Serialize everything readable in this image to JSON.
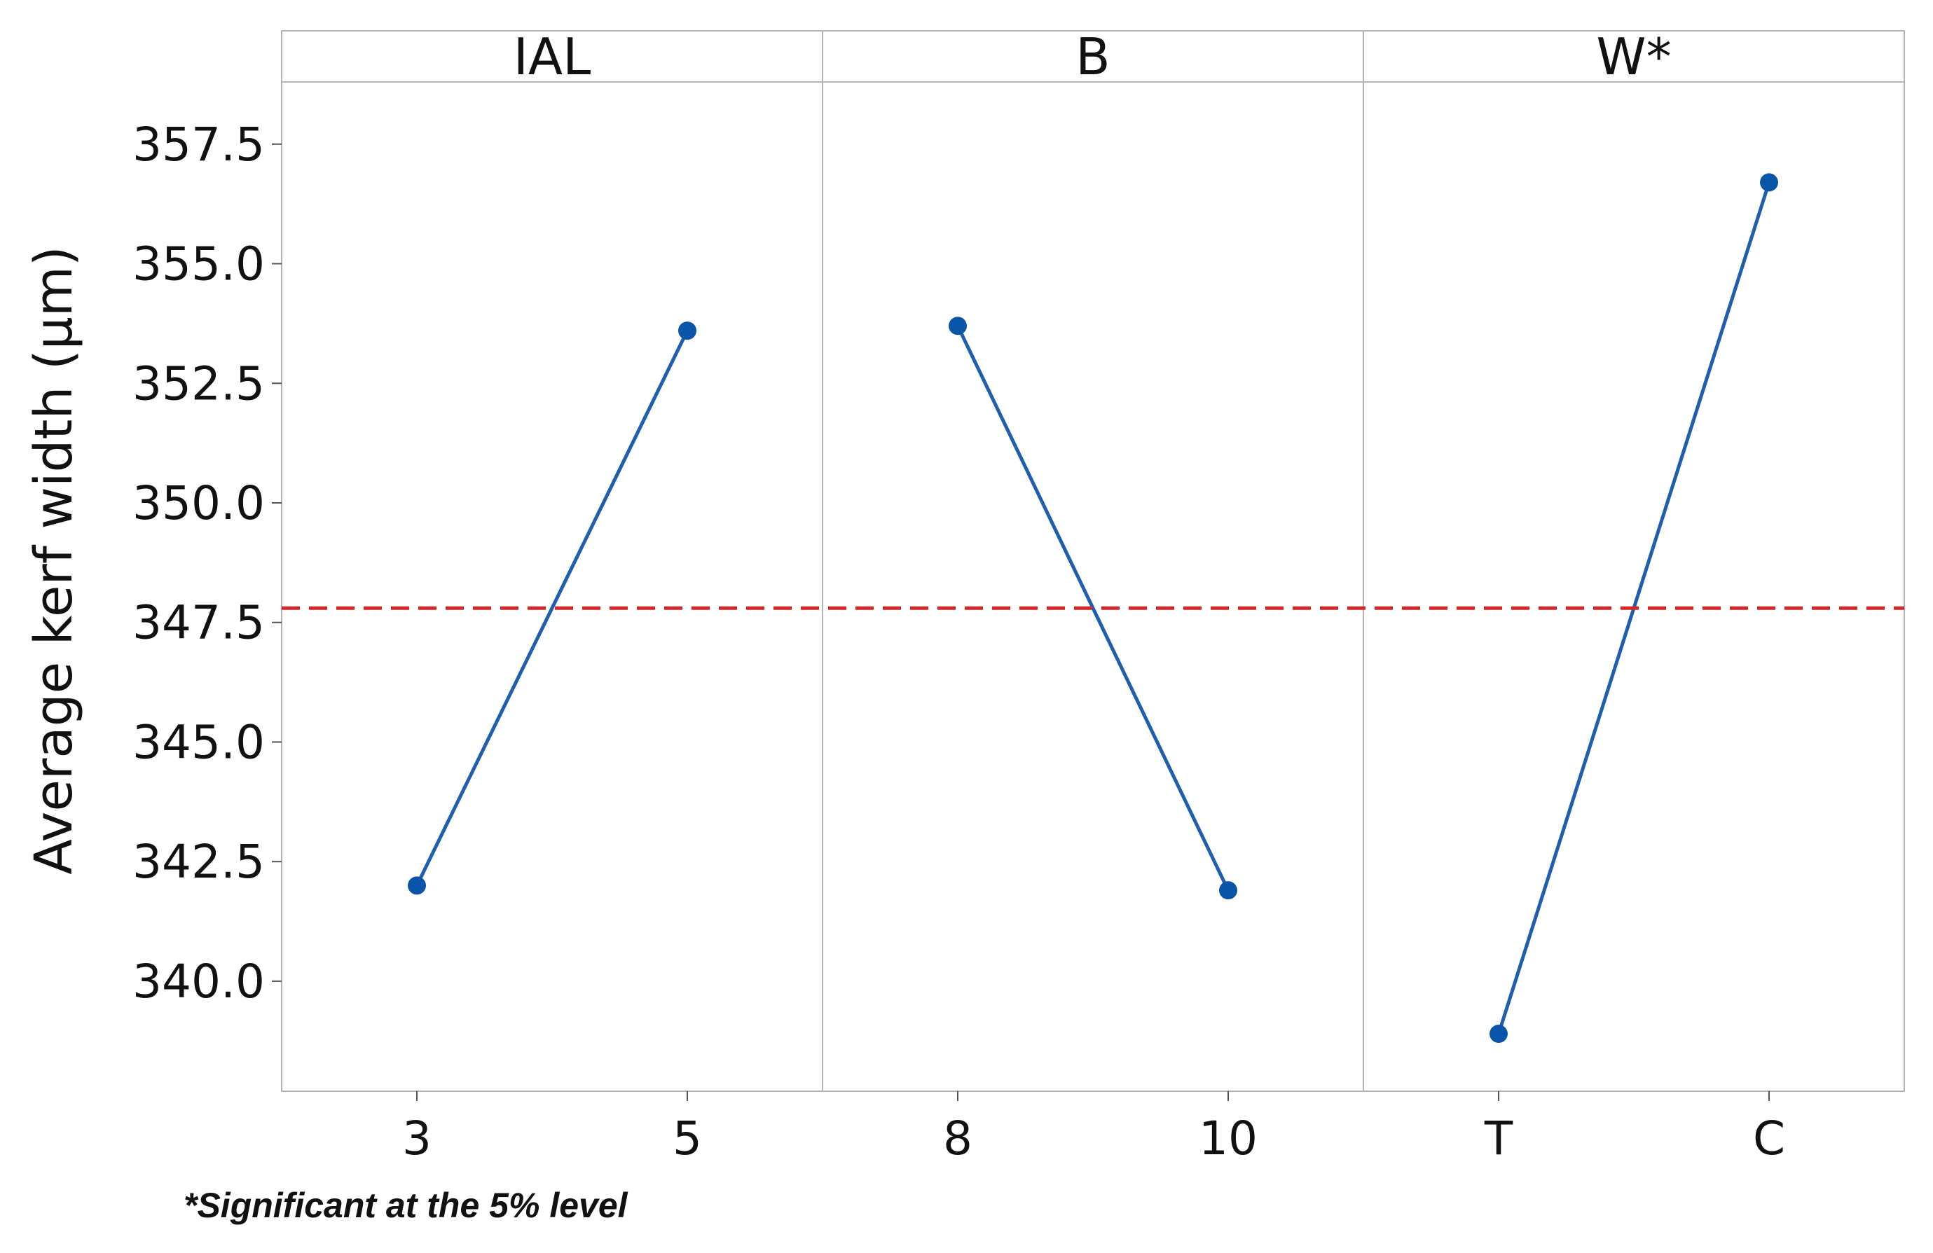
{
  "chart_data": {
    "type": "line",
    "ylabel": "Average kerf width (μm)",
    "yticks": [
      "340.0",
      "342.5",
      "345.0",
      "347.5",
      "350.0",
      "352.5",
      "355.0",
      "357.5"
    ],
    "ylim": [
      337.7,
      358.8
    ],
    "reference_line": {
      "value": 347.8,
      "style": "dashed",
      "color": "#d62728"
    },
    "line_color": "#1f5fae",
    "marker_color": "#0b55a8",
    "grid": false,
    "panels": [
      {
        "title": "IAL",
        "categories": [
          "3",
          "5"
        ],
        "values": [
          342.0,
          353.6
        ]
      },
      {
        "title": "B",
        "categories": [
          "8",
          "10"
        ],
        "values": [
          353.7,
          341.9
        ]
      },
      {
        "title": "W*",
        "categories": [
          "T",
          "C"
        ],
        "values": [
          338.9,
          356.7
        ]
      }
    ],
    "footnote": "*Significant at the 5% level"
  }
}
